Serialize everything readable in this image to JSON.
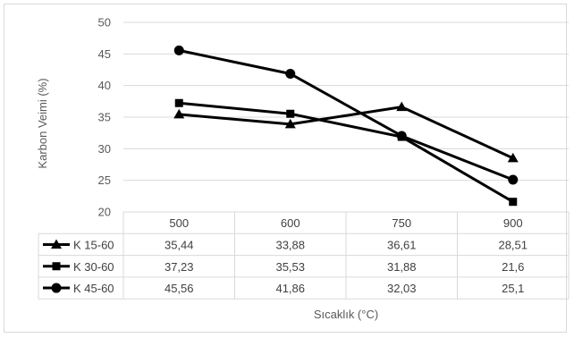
{
  "chart_data": {
    "type": "line",
    "xlabel": "Sıcaklık (°C)",
    "ylabel": "Karbon Veimi (%)",
    "ylim": [
      20,
      50
    ],
    "yticks": [
      "20",
      "25",
      "30",
      "35",
      "40",
      "45",
      "50"
    ],
    "categories": [
      "500",
      "600",
      "750",
      "900"
    ],
    "grid": true,
    "legend": "data-table",
    "series": [
      {
        "name": "K 15-60",
        "marker": "triangle",
        "values": [
          35.44,
          33.88,
          36.61,
          28.51
        ],
        "labels": [
          "35,44",
          "33,88",
          "36,61",
          "28,51"
        ]
      },
      {
        "name": "K 30-60",
        "marker": "square",
        "values": [
          37.23,
          35.53,
          31.88,
          21.6
        ],
        "labels": [
          "37,23",
          "35,53",
          "31,88",
          "21,6"
        ]
      },
      {
        "name": "K 45-60",
        "marker": "circle",
        "values": [
          45.56,
          41.86,
          32.03,
          25.1
        ],
        "labels": [
          "45,56",
          "41,86",
          "32,03",
          "25,1"
        ]
      }
    ],
    "line_color": "#000000",
    "grid_color": "#d9d9d9"
  }
}
